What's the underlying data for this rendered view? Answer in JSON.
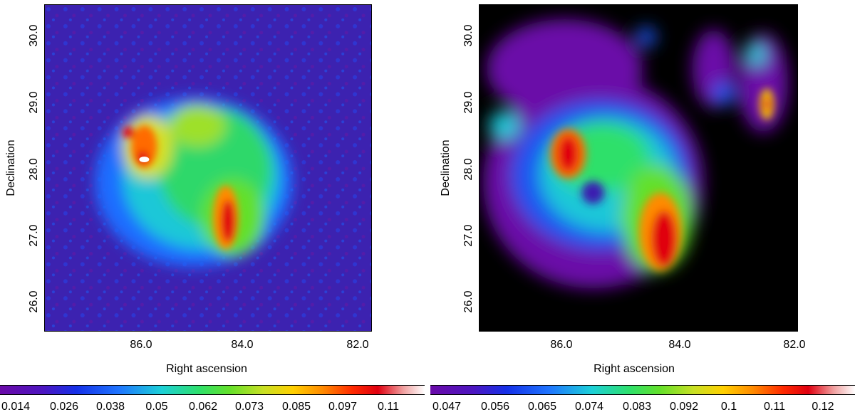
{
  "panels": {
    "left": {
      "ylabel": "Declination",
      "xlabel": "Right ascension",
      "yticks": [
        "30.0",
        "29.0",
        "28.0",
        "27.0",
        "26.0"
      ],
      "xticks": [
        "86.0",
        "84.0",
        "82.0"
      ],
      "colorbar_ticks": [
        "0.014",
        "0.026",
        "0.038",
        "0.05",
        "0.062",
        "0.073",
        "0.085",
        "0.097",
        "0.11"
      ],
      "background": "#3a1fb0"
    },
    "right": {
      "ylabel": "Declination",
      "xlabel": "Right ascension",
      "yticks": [
        "30.0",
        "29.0",
        "28.0",
        "27.0",
        "26.0"
      ],
      "xticks": [
        "86.0",
        "84.0",
        "82.0"
      ],
      "colorbar_ticks": [
        "0.047",
        "0.056",
        "0.065",
        "0.074",
        "0.083",
        "0.092",
        "0.1",
        "0.11",
        "0.12"
      ],
      "background": "#000000"
    }
  }
}
